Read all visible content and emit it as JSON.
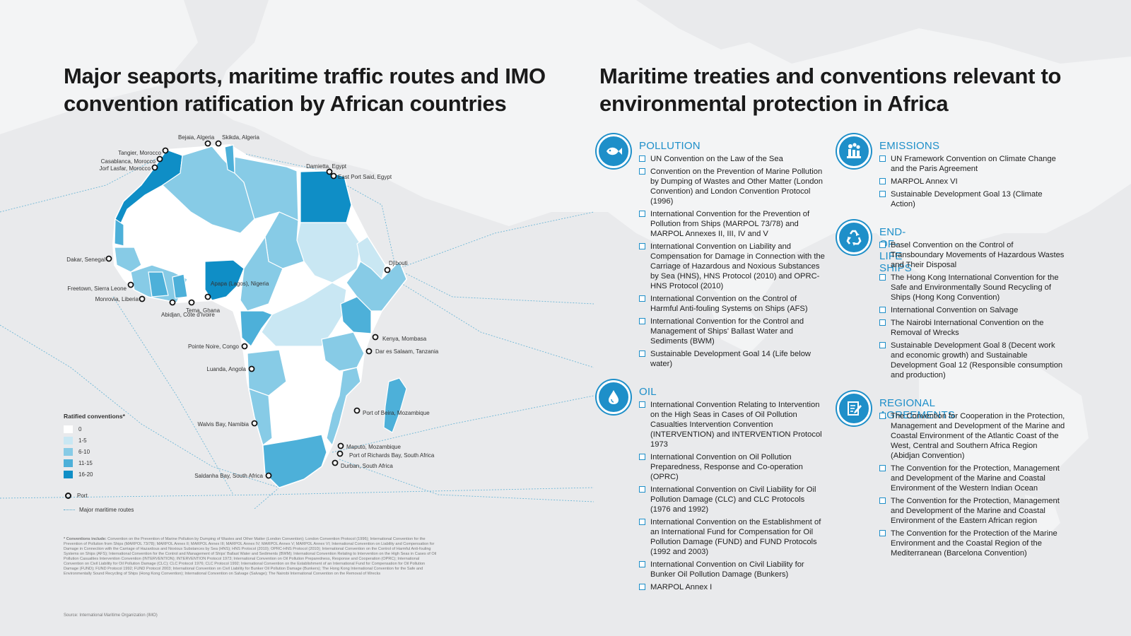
{
  "titles": {
    "left": "Major seaports, maritime traffic routes and IMO convention ratification by African countries",
    "right": "Maritime treaties and conventions relevant to environmental protection in Africa"
  },
  "colors": {
    "accent": "#1e8fc9",
    "class_0": "#ffffff",
    "class_1_5": "#c9e7f3",
    "class_6_10": "#87cbe6",
    "class_11_15": "#4db0d9",
    "class_16_20": "#0f8ec6",
    "route": "#6fb7d6",
    "background": "#e9eaec",
    "land_world": "#f4f5f6"
  },
  "map": {
    "ports": [
      "Bejaia, Algeria",
      "Skikda, Algeria",
      "Tangier, Morocco",
      "Casablanca, Morocco",
      "Jorf Lasfar, Morocco",
      "Damietta, Egypt",
      "East Port Said, Egypt",
      "Dakar, Senegal",
      "Djibouti",
      "Freetown, Sierra Leone",
      "Monrovia, Liberia",
      "Apapa (Lagos), Nigeria",
      "Tema, Ghana",
      "Abidjan, Côte d'Ivoire",
      "Kenya, Mombasa",
      "Pointe Noire, Congo",
      "Dar es Salaam, Tanzania",
      "Luanda, Angola",
      "Port of Beira, Mozambique",
      "Walvis Bay, Namibia",
      "Maputo, Mozambique",
      "Port of Richards Bay, South Africa",
      "Durban, South Africa",
      "Saldanha Bay, South Africa"
    ],
    "legend": {
      "title": "Ratified conventions*",
      "classes": [
        "0",
        "1-5",
        "6-10",
        "11-15",
        "16-20"
      ],
      "port": "Port",
      "routes": "Major maritime routes"
    }
  },
  "sections": {
    "pollution": {
      "title": "POLLUTION",
      "icon": "fish-icon",
      "items": [
        "UN Convention on the Law of the Sea",
        "Convention on the Prevention of Marine Pollution by Dumping of Wastes and Other Matter (London Convention) and London Convention Protocol (1996)",
        "International Convention for the Prevention of Pollution from Ships (MARPOL 73/78) and MARPOL Annexes II, III, IV and V",
        "International Convention on Liability and Compensation for Damage in Connection with the Carriage of Hazardous and Noxious Substances by Sea (HNS), HNS Protocol (2010) and OPRC-HNS Protocol (2010)",
        "International Convention on the Control of Harmful Anti-fouling Systems on Ships (AFS)",
        "International Convention for the Control and Management of Ships' Ballast Water and Sediments (BWM)",
        "Sustainable Development Goal 14 (Life below water)"
      ]
    },
    "oil": {
      "title": "OIL",
      "icon": "oil-drop-icon",
      "items": [
        "International Convention Relating to Intervention on the High Seas in Cases of Oil Pollution Casualties Intervention Convention (INTERVENTION) and INTERVENTION Protocol 1973",
        "International Convention on Oil Pollution Preparedness, Response and Co-operation (OPRC)",
        "International Convention on Civil Liability for Oil Pollution Damage (CLC) and CLC Protocols (1976 and 1992)",
        "International Convention on the Establishment of an International Fund for Compensation for Oil Pollution Damage (FUND) and FUND Protocols (1992 and 2003)",
        "International Convention on Civil Liability for Bunker Oil Pollution Damage (Bunkers)",
        "MARPOL Annex I"
      ]
    },
    "emissions": {
      "title": "EMISSIONS",
      "icon": "factory-icon",
      "items": [
        "UN Framework Convention on Climate Change and the Paris Agreement",
        "MARPOL Annex VI",
        "Sustainable Development Goal 13 (Climate Action)"
      ]
    },
    "eol": {
      "title": "END-OF-LIFE SHIPS",
      "icon": "recycle-icon",
      "items": [
        "Basel Convention on the Control of Transboundary Movements of Hazardous Wastes and Their Disposal",
        "The Hong Kong International Convention for the Safe and Environmentally Sound Recycling of Ships (Hong Kong Convention)",
        "International Convention on Salvage",
        "The Nairobi International Convention on the Removal of Wrecks",
        "Sustainable Development Goal 8  (Decent work and economic growth) and Sustainable Development Goal 12 (Responsible consumption and production)"
      ]
    },
    "regional": {
      "title": "REGIONAL AGREEMENTS",
      "icon": "document-pen-icon",
      "items": [
        "The Convention for Cooperation in the Protection, Management and Development of the Marine and Coastal Environment of the Atlantic Coast of the West, Central and Southern Africa Region (Abidjan Convention)",
        "The Convention for the Protection, Management and Development of the Marine and Coastal Environment of the Western Indian Ocean",
        "The Convention for the Protection, Management and Development of the Marine and Coastal Environment of the Eastern African region",
        "The Convention for the Protection of the Marine Environment and the Coastal Region of the Mediterranean (Barcelona Convention)"
      ]
    }
  },
  "footnote": {
    "label": "* Conventions include:",
    "text": "Convention on the Prevention of Marine Pollution by Dumping of Wastes and Other Matter (London Convention); London Convention Protocol (1996); International Convention for the Prevention of Pollution from Ships (MARPOL 73/78); MARPOL Annex II; MARPOL Annex III; MARPOL Annex IV; MARPOL Annex V; MARPOL Annex VI; International Convention on Liability and Compensation for Damage in Connection with the Carriage of Hazardous and Noxious Substances by Sea (HNS); HNS Protocol (2010); OPRC-HNS Protocol (2010); International Convention on the Control of Harmful Anti-fouling Systems on Ships (AFS); International Convention for the Control and Management of Ships' Ballast Water and Sediments (BWM); International Convention Relating to Intervention on the High Seas in Cases of Oil Pollution Casualties Intervention Convention (INTERVENTION); INTERVENTION Protocol 1973; International Convention on Oil Pollution Preparedness, Response and Cooperation (OPRC); International Convention on Civil Liability for Oil Pollution Damage (CLC); CLC Protocol 1976; CLC Protocol 1992; International Convention on the Establishment of an International Fund for Compensation for Oil Pollution Damage (FUND); FUND Protocol 1992; FUND Protocol 2003; International Convention on Civil Liability for Bunker Oil Pollution Damage (Bunkers); The Hong Kong International Convention for the Safe and Environmentally Sound Recycling of Ships (Hong Kong Convention); International Convention on Salvage (Salvage); The Nairobi International Convention on the Removal of Wrecks"
  },
  "source": "Source: International Maritime Organization (IMO)"
}
